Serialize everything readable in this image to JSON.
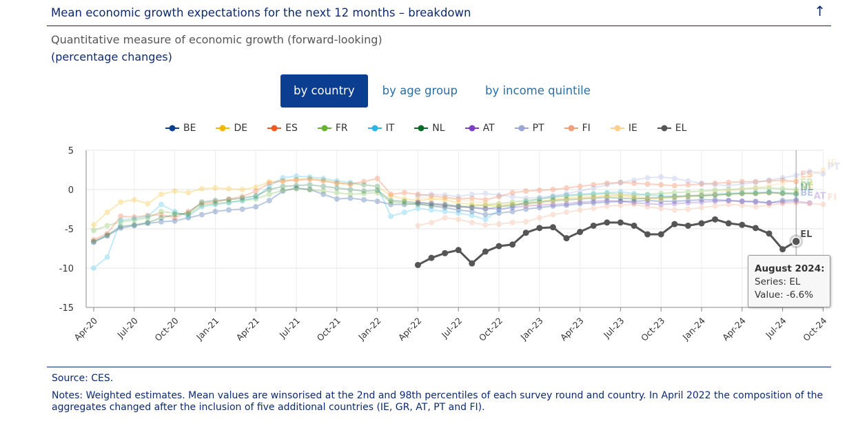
{
  "header": {
    "title": "Mean economic growth expectations for the next 12 months – breakdown",
    "collapse_icon": "arrow-up-icon"
  },
  "subtitle": "Quantitative measure of economic growth (forward-looking)",
  "units": "(percentage changes)",
  "tabs": [
    {
      "label": "by country",
      "active": true
    },
    {
      "label": "by age group",
      "active": false
    },
    {
      "label": "by income quintile",
      "active": false
    }
  ],
  "tooltip": {
    "title": "August 2024:",
    "series": "Series: EL",
    "value": "Value: -6.6%"
  },
  "footer": {
    "source": "Source: CES.",
    "notes": "Notes: Weighted estimates. Mean values are winsorised at the 2nd and 98th percentiles of each survey round and country. In April 2022 the composition of the aggregates changed after the inclusion of five additional countries (IE, GR, AT, PT and FI)."
  },
  "chart_data": {
    "type": "line",
    "title": "",
    "xlabel": "",
    "ylabel": "",
    "ylim": [
      -15,
      5
    ],
    "yticks": [
      5,
      0,
      -5,
      -10,
      -15
    ],
    "x_tick_labels": [
      "Apr-20",
      "Jul-20",
      "Oct-20",
      "Jan-21",
      "Apr-21",
      "Jul-21",
      "Oct-21",
      "Jan-22",
      "Apr-22",
      "Jul-22",
      "Oct-22",
      "Jan-23",
      "Apr-23",
      "Jul-23",
      "Oct-23",
      "Jan-24",
      "Apr-24",
      "Jul-24",
      "Oct-24"
    ],
    "x_range": [
      "2020-04",
      "2024-10"
    ],
    "legend_position": "top",
    "highlight": {
      "series": "EL",
      "month": "2024-08"
    },
    "series": [
      {
        "name": "BE",
        "color": "#0b3d91",
        "start": "2020-04",
        "values": [
          -6.7,
          -5.9,
          -4.9,
          -4.6,
          -4.3,
          -4.1,
          -4.0,
          -3.6,
          -3.2,
          -2.8,
          -2.6,
          -2.5,
          -2.2,
          -1.4,
          -0.2,
          0.2,
          0.0,
          -0.6,
          -1.2,
          -1.1,
          -1.3,
          -1.5,
          -1.9,
          -1.9,
          -1.8,
          -2.1,
          -2.3,
          -2.6,
          -2.8,
          -3.2,
          -3.0,
          -2.8,
          -2.5,
          -2.3,
          -2.1,
          -2.0,
          -1.8,
          -1.7,
          -1.6,
          -1.5,
          -1.5,
          -1.4,
          -1.5,
          -1.5,
          -1.4,
          -1.3,
          -1.3,
          -1.4,
          -1.5,
          -1.5,
          -1.7,
          -1.4,
          -1.3
        ]
      },
      {
        "name": "DE",
        "color": "#f2b700",
        "start": "2020-04",
        "values": [
          -4.5,
          -2.9,
          -1.6,
          -1.3,
          -1.8,
          -0.6,
          -0.2,
          -0.4,
          0.1,
          0.2,
          0.1,
          0.0,
          0.3,
          1.0,
          1.1,
          1.3,
          1.4,
          1.2,
          0.9,
          0.7,
          0.6,
          0.4,
          -0.8,
          -1.2,
          -1.4,
          -1.2,
          -1.3,
          -1.7,
          -1.9,
          -2.0,
          -2.1,
          -1.9,
          -1.7,
          -1.5,
          -1.3,
          -1.1,
          -1.0,
          -0.9,
          -0.8,
          -0.8,
          -1.0,
          -1.2,
          -1.1,
          -1.0,
          -0.9,
          -0.8,
          -0.7,
          -0.6,
          -0.5,
          -0.5,
          -0.4,
          -0.5,
          -0.4
        ]
      },
      {
        "name": "ES",
        "color": "#f05a22",
        "start": "2020-04",
        "values": [
          -6.4,
          -5.6,
          -3.4,
          -3.5,
          -3.3,
          -3.2,
          -3.6,
          -2.8,
          -1.8,
          -1.6,
          -1.2,
          -0.9,
          -0.2,
          0.8,
          1.1,
          1.2,
          1.3,
          1.1,
          0.8,
          0.7,
          1.0,
          1.4,
          -0.6,
          -0.4,
          -0.6,
          -0.8,
          -1.0,
          -1.2,
          -1.1,
          -1.3,
          -0.9,
          -0.4,
          -0.2,
          -0.1,
          0.0,
          0.2,
          0.4,
          0.6,
          0.8,
          0.9,
          0.8,
          0.7,
          0.6,
          0.5,
          0.6,
          0.7,
          0.8,
          0.9,
          1.0,
          1.0,
          1.1,
          1.2,
          1.0
        ]
      },
      {
        "name": "FR",
        "color": "#65b32e",
        "start": "2020-04",
        "values": [
          -5.2,
          -4.6,
          -4.1,
          -3.9,
          -3.6,
          -2.8,
          -3.0,
          -3.2,
          -2.0,
          -1.8,
          -1.6,
          -1.4,
          -1.2,
          -0.6,
          -0.1,
          0.1,
          0.0,
          -0.2,
          -0.4,
          -0.6,
          -0.5,
          -0.4,
          -1.6,
          -1.7,
          -1.9,
          -2.0,
          -2.1,
          -2.2,
          -2.1,
          -2.0,
          -1.8,
          -1.6,
          -1.4,
          -1.2,
          -1.0,
          -0.8,
          -0.7,
          -0.6,
          -0.5,
          -0.6,
          -0.7,
          -0.6,
          -0.5,
          -0.4,
          -0.3,
          -0.2,
          -0.1,
          0.0,
          0.1,
          0.2,
          0.2,
          0.1,
          0.0
        ]
      },
      {
        "name": "IT",
        "color": "#29b6e6",
        "start": "2020-04",
        "values": [
          -10.0,
          -8.6,
          -3.9,
          -3.7,
          -3.4,
          -1.9,
          -2.8,
          -3.4,
          -2.2,
          -1.9,
          -1.7,
          -1.4,
          -1.0,
          0.4,
          1.5,
          1.7,
          1.6,
          1.4,
          1.1,
          0.9,
          0.6,
          0.4,
          -3.4,
          -2.9,
          -2.4,
          -2.6,
          -2.8,
          -3.0,
          -3.3,
          -3.8,
          -2.6,
          -2.2,
          -1.6,
          -1.2,
          -0.9,
          -0.7,
          -0.6,
          -0.5,
          -0.4,
          -0.3,
          -0.5,
          -0.7,
          -0.8,
          -0.9,
          -0.8,
          -0.7,
          -0.6,
          -0.5,
          -0.4,
          -0.4,
          -0.3,
          -0.4,
          -0.5
        ]
      },
      {
        "name": "NL",
        "color": "#0b6b2b",
        "start": "2020-04",
        "values": [
          -6.6,
          -5.8,
          -4.7,
          -4.5,
          -4.2,
          -3.6,
          -3.2,
          -3.0,
          -1.6,
          -1.4,
          -1.3,
          -1.1,
          -0.8,
          0.0,
          0.4,
          0.5,
          0.6,
          0.4,
          0.2,
          0.0,
          -0.2,
          -0.1,
          -1.4,
          -1.5,
          -1.7,
          -1.8,
          -1.9,
          -2.1,
          -2.3,
          -2.5,
          -2.2,
          -2.0,
          -1.8,
          -1.6,
          -1.4,
          -1.3,
          -1.2,
          -1.1,
          -1.0,
          -1.1,
          -1.2,
          -1.1,
          -1.0,
          -0.9,
          -0.8,
          -0.8,
          -0.7,
          -0.6,
          -0.5,
          -0.5,
          -0.4,
          -0.5,
          -0.6
        ]
      },
      {
        "name": "AT",
        "color": "#7b3fc4",
        "start": "2022-04",
        "values": [
          -1.6,
          -1.8,
          -2.0,
          -2.2,
          -2.3,
          -2.4,
          -2.5,
          -2.3,
          -2.1,
          -2.0,
          -1.9,
          -1.8,
          -1.6,
          -1.5,
          -1.4,
          -1.5,
          -1.7,
          -1.8,
          -1.9,
          -1.8,
          -1.7,
          -1.6,
          -1.5,
          -1.4,
          -1.5,
          -1.6,
          -1.7,
          -1.6,
          -1.5,
          -1.7
        ]
      },
      {
        "name": "PT",
        "color": "#9aa6d6",
        "start": "2022-04",
        "values": [
          -0.8,
          -0.6,
          -0.7,
          -0.9,
          -0.6,
          -0.5,
          -0.7,
          -0.9,
          -1.1,
          -1.0,
          -0.8,
          -0.5,
          -0.2,
          0.2,
          0.6,
          0.9,
          1.2,
          1.5,
          1.6,
          1.4,
          1.1,
          0.8,
          0.6,
          0.5,
          0.7,
          0.9,
          1.2,
          1.5,
          1.8,
          2.3,
          2.0
        ]
      },
      {
        "name": "FI",
        "color": "#f0a07a",
        "start": "2022-04",
        "values": [
          -4.6,
          -4.2,
          -3.6,
          -3.8,
          -4.2,
          -4.5,
          -4.4,
          -4.2,
          -4.1,
          -3.6,
          -3.2,
          -2.9,
          -2.6,
          -2.4,
          -2.1,
          -2.0,
          -1.9,
          -2.2,
          -2.4,
          -2.6,
          -2.5,
          -2.3,
          -2.1,
          -1.9,
          -2.0,
          -2.2,
          -2.0,
          -1.8,
          -1.7,
          -1.8,
          -1.9
        ]
      },
      {
        "name": "IE",
        "color": "#fbd08a",
        "start": "2022-04",
        "values": [
          -1.0,
          -1.2,
          -1.1,
          -1.3,
          -1.5,
          -1.7,
          -1.8,
          -1.9,
          -2.0,
          -1.8,
          -1.6,
          -1.4,
          -1.2,
          -1.0,
          -0.8,
          -0.7,
          -0.8,
          -1.0,
          -1.2,
          -1.0,
          -0.8,
          -0.6,
          -0.4,
          -0.2,
          0.0,
          0.2,
          0.5,
          0.8,
          1.2,
          1.8,
          2.5
        ]
      },
      {
        "name": "EL",
        "color": "#555555",
        "start": "2022-04",
        "values": [
          -9.6,
          -8.7,
          -8.1,
          -7.7,
          -9.4,
          -7.9,
          -7.2,
          -7.0,
          -5.5,
          -4.9,
          -4.8,
          -6.2,
          -5.4,
          -4.6,
          -4.2,
          -4.2,
          -4.6,
          -5.7,
          -5.7,
          -4.4,
          -4.6,
          -4.3,
          -3.8,
          -4.3,
          -4.5,
          -4.9,
          -5.6,
          -7.6,
          -6.6
        ]
      }
    ]
  }
}
